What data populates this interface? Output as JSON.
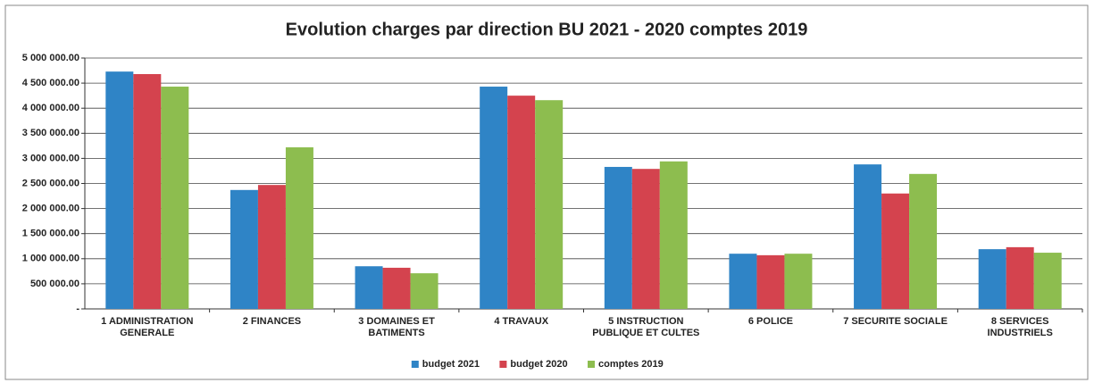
{
  "chart_data": {
    "type": "bar",
    "title": "Evolution charges par direction BU 2021 - 2020 comptes 2019",
    "categories": [
      "1  ADMINISTRATION GENERALE",
      "2  FINANCES",
      "3  DOMAINES ET BATIMENTS",
      "4  TRAVAUX",
      "5  INSTRUCTION PUBLIQUE ET CULTES",
      "6  POLICE",
      "7  SECURITE SOCIALE",
      "8  SERVICES INDUSTRIELS"
    ],
    "series": [
      {
        "name": "budget 2021",
        "color": "#2f84c6",
        "values": [
          4730000,
          2370000,
          850000,
          4430000,
          2830000,
          1100000,
          2880000,
          1190000
        ]
      },
      {
        "name": "budget 2020",
        "color": "#d4434e",
        "values": [
          4680000,
          2470000,
          820000,
          4250000,
          2790000,
          1070000,
          2300000,
          1230000
        ]
      },
      {
        "name": "comptes 2019",
        "color": "#8dbd4f",
        "values": [
          4430000,
          3220000,
          710000,
          4160000,
          2940000,
          1100000,
          2690000,
          1120000
        ]
      }
    ],
    "ylim": [
      0,
      5000000
    ],
    "yticks": [
      {
        "value": 0,
        "label": "-"
      },
      {
        "value": 500000,
        "label": "500 000.00"
      },
      {
        "value": 1000000,
        "label": "1 000 000.00"
      },
      {
        "value": 1500000,
        "label": "1 500 000.00"
      },
      {
        "value": 2000000,
        "label": "2 000 000.00"
      },
      {
        "value": 2500000,
        "label": "2 500 000.00"
      },
      {
        "value": 3000000,
        "label": "3 000 000.00"
      },
      {
        "value": 3500000,
        "label": "3 500 000.00"
      },
      {
        "value": 4000000,
        "label": "4 000 000.00"
      },
      {
        "value": 4500000,
        "label": "4 500 000.00"
      },
      {
        "value": 5000000,
        "label": "5 000 000.00"
      }
    ],
    "grid": true,
    "legend": "bottom"
  }
}
